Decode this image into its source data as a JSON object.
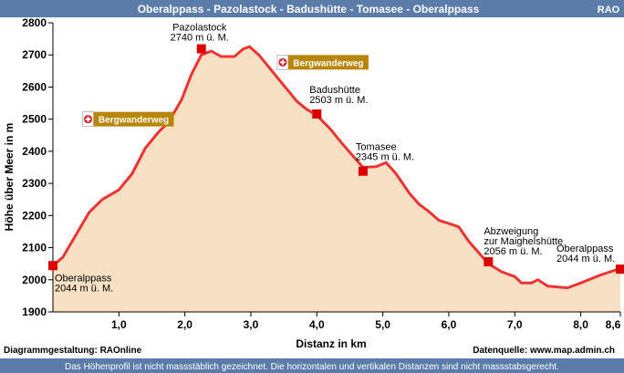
{
  "header": {
    "title": "Oberalppass - Pazolastock - Badushütte - Tomasee - Oberalppass",
    "badge": "RAO",
    "bg_color": "#5B7BA8"
  },
  "footer": {
    "left": "Diagrammgestaltung: RAOnline",
    "right": "Datenquelle: www.map.admin.ch",
    "note": "Das Höhenprofil ist nicht massstäblich gezeichnet. Die horizontalen und vertikalen Distanzen sind nicht massstabsgerecht.",
    "note_bg": "#5B7BA8"
  },
  "chart_data": {
    "type": "area",
    "xlabel": "Distanz in km",
    "ylabel": "Höhe über Meer in m",
    "xlim": [
      0,
      8.6
    ],
    "ylim": [
      1900,
      2800
    ],
    "x_ticks": [
      {
        "value": 1.0,
        "label": "1,0"
      },
      {
        "value": 2.0,
        "label": "2,0"
      },
      {
        "value": 3.0,
        "label": "3,0"
      },
      {
        "value": 4.0,
        "label": "4,0"
      },
      {
        "value": 5.0,
        "label": "5,0"
      },
      {
        "value": 6.0,
        "label": "6,0"
      },
      {
        "value": 7.0,
        "label": "7,0"
      },
      {
        "value": 8.0,
        "label": "8,0"
      },
      {
        "value": 8.6,
        "label": "8,6"
      }
    ],
    "y_ticks": [
      {
        "value": 1900,
        "label": "1900"
      },
      {
        "value": 2000,
        "label": "2000"
      },
      {
        "value": 2100,
        "label": "2100"
      },
      {
        "value": 2200,
        "label": "2200"
      },
      {
        "value": 2300,
        "label": "2300"
      },
      {
        "value": 2400,
        "label": "2400"
      },
      {
        "value": 2500,
        "label": "2500"
      },
      {
        "value": 2600,
        "label": "2600"
      },
      {
        "value": 2700,
        "label": "2700"
      },
      {
        "value": 2800,
        "label": "2800"
      }
    ],
    "colors": {
      "line": "#EE3333",
      "fill": "#F7E0C4",
      "marker": "#DD0000",
      "axis": "#000000",
      "sign_bg": "#B8860B"
    },
    "profile": [
      {
        "x": 0.0,
        "y": 2044
      },
      {
        "x": 0.15,
        "y": 2070
      },
      {
        "x": 0.35,
        "y": 2140
      },
      {
        "x": 0.55,
        "y": 2210
      },
      {
        "x": 0.75,
        "y": 2250
      },
      {
        "x": 1.0,
        "y": 2280
      },
      {
        "x": 1.2,
        "y": 2330
      },
      {
        "x": 1.4,
        "y": 2410
      },
      {
        "x": 1.6,
        "y": 2460
      },
      {
        "x": 1.75,
        "y": 2490
      },
      {
        "x": 1.95,
        "y": 2560
      },
      {
        "x": 2.1,
        "y": 2640
      },
      {
        "x": 2.25,
        "y": 2700
      },
      {
        "x": 2.4,
        "y": 2712
      },
      {
        "x": 2.55,
        "y": 2695
      },
      {
        "x": 2.75,
        "y": 2695
      },
      {
        "x": 2.88,
        "y": 2718
      },
      {
        "x": 2.98,
        "y": 2726
      },
      {
        "x": 3.12,
        "y": 2700
      },
      {
        "x": 3.3,
        "y": 2655
      },
      {
        "x": 3.5,
        "y": 2605
      },
      {
        "x": 3.7,
        "y": 2555
      },
      {
        "x": 3.85,
        "y": 2530
      },
      {
        "x": 4.0,
        "y": 2512
      },
      {
        "x": 4.2,
        "y": 2470
      },
      {
        "x": 4.4,
        "y": 2420
      },
      {
        "x": 4.55,
        "y": 2385
      },
      {
        "x": 4.7,
        "y": 2350
      },
      {
        "x": 4.9,
        "y": 2352
      },
      {
        "x": 5.05,
        "y": 2365
      },
      {
        "x": 5.2,
        "y": 2330
      },
      {
        "x": 5.4,
        "y": 2270
      },
      {
        "x": 5.55,
        "y": 2235
      },
      {
        "x": 5.7,
        "y": 2212
      },
      {
        "x": 5.85,
        "y": 2185
      },
      {
        "x": 6.0,
        "y": 2175
      },
      {
        "x": 6.15,
        "y": 2165
      },
      {
        "x": 6.3,
        "y": 2120
      },
      {
        "x": 6.45,
        "y": 2085
      },
      {
        "x": 6.6,
        "y": 2050
      },
      {
        "x": 6.8,
        "y": 2025
      },
      {
        "x": 7.0,
        "y": 2010
      },
      {
        "x": 7.1,
        "y": 1990
      },
      {
        "x": 7.25,
        "y": 1990
      },
      {
        "x": 7.35,
        "y": 2000
      },
      {
        "x": 7.5,
        "y": 1980
      },
      {
        "x": 7.8,
        "y": 1975
      },
      {
        "x": 8.0,
        "y": 1990
      },
      {
        "x": 8.3,
        "y": 2015
      },
      {
        "x": 8.6,
        "y": 2035
      }
    ],
    "waypoints": [
      {
        "x": 0.0,
        "y": 2044,
        "name": "Oberalppass",
        "elev": "2044 m ü. M.",
        "anchor": "below"
      },
      {
        "x": 2.25,
        "y": 2719,
        "name": "Pazolastock",
        "elev": "2740 m ü. M.",
        "anchor": "above"
      },
      {
        "x": 4.0,
        "y": 2516,
        "name": "Badushütte",
        "elev": "2503 m ü. M.",
        "anchor": "right-above"
      },
      {
        "x": 4.7,
        "y": 2338,
        "name": "Tomasee",
        "elev": "2345 m ü. M.",
        "anchor": "right-above"
      },
      {
        "x": 6.6,
        "y": 2056,
        "name": "Abzweigung\nzur Maighelshütte",
        "elev": "2056 m ü. M.",
        "anchor": "left-above"
      },
      {
        "x": 8.6,
        "y": 2033,
        "name": "Oberalppass",
        "elev": "2044 m ü. M.",
        "anchor": "left-above"
      }
    ],
    "signs": [
      {
        "x": 0.45,
        "y": 2500,
        "label": "Bergwanderweg",
        "pointer_x": 1.72,
        "side": "right"
      },
      {
        "x": 3.4,
        "y": 2677,
        "label": "Bergwanderweg",
        "pointer_x": 3.62,
        "side": "right"
      }
    ]
  }
}
